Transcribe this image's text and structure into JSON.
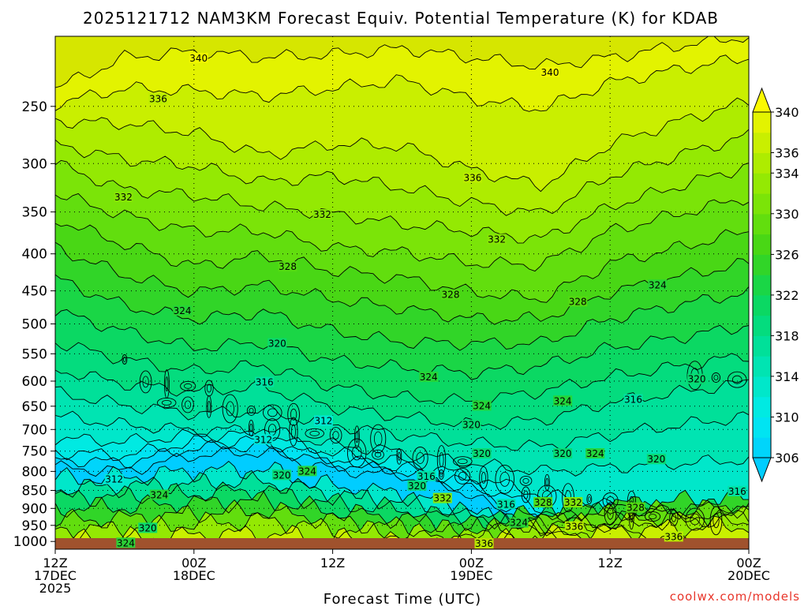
{
  "chart_data": {
    "type": "contour-filled",
    "title": "2025121712 NAM3KM Forecast Equiv. Potential Temperature (K) for KDAB",
    "xlabel": "Forecast Time (UTC)",
    "ylabel": "",
    "credit": "coolwx.com/models",
    "x_range_hours": [
      0,
      60
    ],
    "x_ticks": [
      {
        "hour": 0,
        "lines": [
          "12Z",
          "17DEC",
          "2025"
        ]
      },
      {
        "hour": 12,
        "lines": [
          "00Z",
          "18DEC"
        ]
      },
      {
        "hour": 24,
        "lines": [
          "12Z"
        ]
      },
      {
        "hour": 36,
        "lines": [
          "00Z",
          "19DEC"
        ]
      },
      {
        "hour": 48,
        "lines": [
          "12Z"
        ]
      },
      {
        "hour": 60,
        "lines": [
          "00Z",
          "20DEC"
        ]
      }
    ],
    "y_axis": {
      "units": "hPa",
      "scale": "log-pressure",
      "top": 200,
      "bottom": 1025,
      "ticks": [
        250,
        300,
        350,
        400,
        450,
        500,
        550,
        600,
        650,
        700,
        750,
        800,
        850,
        900,
        950,
        1000
      ]
    },
    "colorbar": {
      "units": "K",
      "levels": [
        306,
        308,
        310,
        312,
        314,
        316,
        318,
        320,
        322,
        324,
        326,
        328,
        330,
        332,
        334,
        336,
        338,
        340
      ],
      "tick_labels": [
        306,
        310,
        314,
        318,
        322,
        326,
        330,
        334,
        336,
        340
      ]
    },
    "contour_labels": [
      {
        "value": 340,
        "hour": 12.4,
        "p": 215
      },
      {
        "value": 340,
        "hour": 42.8,
        "p": 225
      },
      {
        "value": 336,
        "hour": 8.9,
        "p": 245
      },
      {
        "value": 336,
        "hour": 36.1,
        "p": 315
      },
      {
        "value": 332,
        "hour": 5.9,
        "p": 335
      },
      {
        "value": 332,
        "hour": 23.1,
        "p": 354
      },
      {
        "value": 332,
        "hour": 38.2,
        "p": 383
      },
      {
        "value": 328,
        "hour": 20.1,
        "p": 418
      },
      {
        "value": 328,
        "hour": 34.2,
        "p": 457
      },
      {
        "value": 328,
        "hour": 45.2,
        "p": 467
      },
      {
        "value": 324,
        "hour": 11.0,
        "p": 481
      },
      {
        "value": 324,
        "hour": 52.1,
        "p": 443
      },
      {
        "value": 324,
        "hour": 32.3,
        "p": 594
      },
      {
        "value": 324,
        "hour": 36.9,
        "p": 651
      },
      {
        "value": 324,
        "hour": 43.9,
        "p": 641
      },
      {
        "value": 324,
        "hour": 21.8,
        "p": 802
      },
      {
        "value": 324,
        "hour": 9.0,
        "p": 865
      },
      {
        "value": 324,
        "hour": 6.1,
        "p": 1008
      },
      {
        "value": 324,
        "hour": 46.7,
        "p": 758
      },
      {
        "value": 324,
        "hour": 40.1,
        "p": 945
      },
      {
        "value": 320,
        "hour": 19.2,
        "p": 534
      },
      {
        "value": 320,
        "hour": 55.5,
        "p": 598
      },
      {
        "value": 320,
        "hour": 36.0,
        "p": 692
      },
      {
        "value": 320,
        "hour": 36.9,
        "p": 758
      },
      {
        "value": 320,
        "hour": 43.9,
        "p": 758
      },
      {
        "value": 320,
        "hour": 19.6,
        "p": 812
      },
      {
        "value": 320,
        "hour": 31.3,
        "p": 840
      },
      {
        "value": 320,
        "hour": 52.0,
        "p": 772
      },
      {
        "value": 320,
        "hour": 8.0,
        "p": 961
      },
      {
        "value": 316,
        "hour": 18.1,
        "p": 604
      },
      {
        "value": 316,
        "hour": 50.0,
        "p": 638
      },
      {
        "value": 316,
        "hour": 32.1,
        "p": 815
      },
      {
        "value": 316,
        "hour": 39.0,
        "p": 891
      },
      {
        "value": 316,
        "hour": 59.0,
        "p": 855
      },
      {
        "value": 312,
        "hour": 23.2,
        "p": 683
      },
      {
        "value": 312,
        "hour": 18.0,
        "p": 725
      },
      {
        "value": 312,
        "hour": 5.1,
        "p": 823
      },
      {
        "value": 332,
        "hour": 33.5,
        "p": 874
      },
      {
        "value": 332,
        "hour": 44.8,
        "p": 886
      },
      {
        "value": 328,
        "hour": 42.2,
        "p": 886
      },
      {
        "value": 328,
        "hour": 50.2,
        "p": 901
      },
      {
        "value": 336,
        "hour": 44.9,
        "p": 957
      },
      {
        "value": 336,
        "hour": 53.5,
        "p": 988
      },
      {
        "value": 336,
        "hour": 37.1,
        "p": 1010
      }
    ]
  }
}
